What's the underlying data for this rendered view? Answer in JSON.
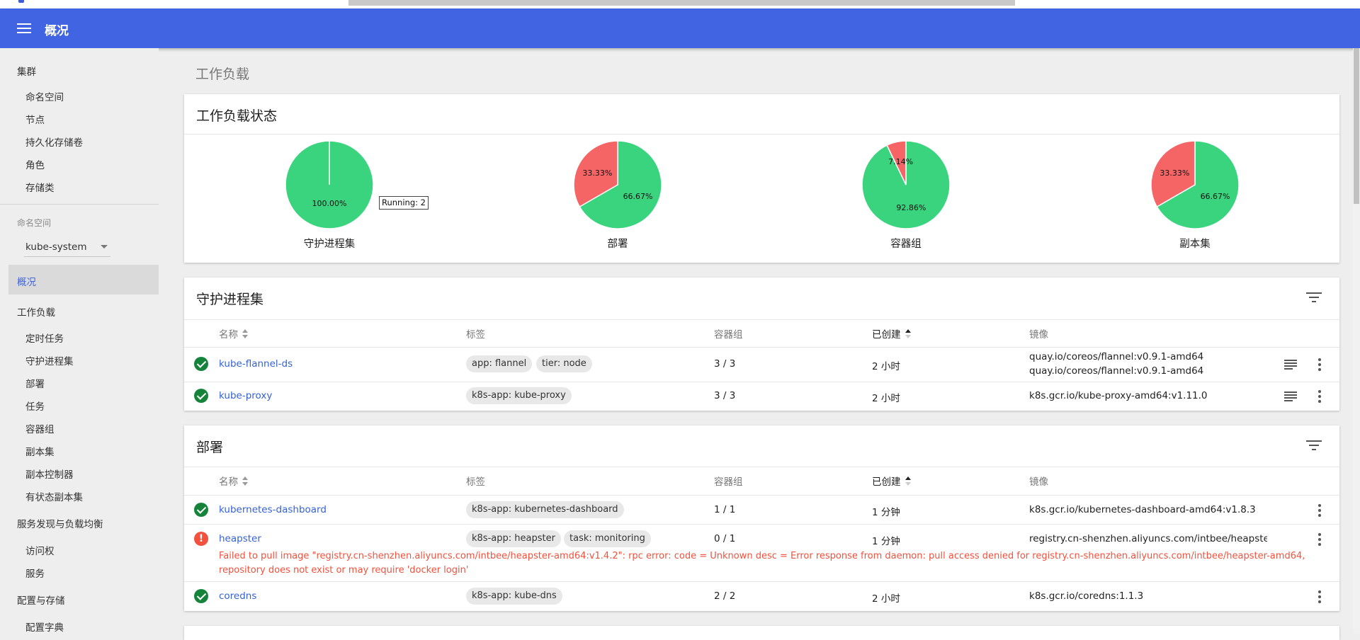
{
  "app": {
    "title": "概况"
  },
  "sidebar": {
    "cluster_section": "集群",
    "cluster_items": [
      "命名空间",
      "节点",
      "持久化存储卷",
      "角色",
      "存储类"
    ],
    "namespace_caption": "命名空间",
    "namespace_value": "kube-system",
    "overview": "概况",
    "workloads_section": "工作负载",
    "workload_items": [
      "定时任务",
      "守护进程集",
      "部署",
      "任务",
      "容器组",
      "副本集",
      "副本控制器",
      "有状态副本集"
    ],
    "discovery_section": "服务发现与负载均衡",
    "discovery_items": [
      "访问权",
      "服务"
    ],
    "config_section": "配置与存储",
    "config_items": [
      "配置字典"
    ]
  },
  "main": {
    "heading": "工作负载"
  },
  "status_card": {
    "title": "工作负载状态",
    "tooltip": "Running: 2",
    "colors": {
      "running": "#3ad47f",
      "failed": "#f56565",
      "pending": "#ffb300"
    },
    "pies": [
      {
        "label": "守护进程集",
        "running_fraction": 1.0,
        "failed_fraction": 0.0,
        "running_pct": "100.00%",
        "failed_pct": ""
      },
      {
        "label": "部署",
        "running_fraction": 0.6667,
        "failed_fraction": 0.3333,
        "running_pct": "66.67%",
        "failed_pct": "33.33%"
      },
      {
        "label": "容器组",
        "running_fraction": 0.9286,
        "failed_fraction": 0.0714,
        "running_pct": "92.86%",
        "failed_pct": "7.14%"
      },
      {
        "label": "副本集",
        "running_fraction": 0.6667,
        "failed_fraction": 0.3333,
        "running_pct": "66.67%",
        "failed_pct": "33.33%"
      }
    ]
  },
  "columns": {
    "name": "名称",
    "labels": "标签",
    "pods": "容器组",
    "created": "已创建",
    "images": "镜像"
  },
  "daemonsets": {
    "title": "守护进程集",
    "rows": [
      {
        "name": "kube-flannel-ds",
        "labels": [
          "app: flannel",
          "tier: node"
        ],
        "pods": "3 / 3",
        "created": "2 小时",
        "images": [
          "quay.io/coreos/flannel:v0.9.1-amd64",
          "quay.io/coreos/flannel:v0.9.1-amd64"
        ]
      },
      {
        "name": "kube-proxy",
        "labels": [
          "k8s-app: kube-proxy"
        ],
        "pods": "3 / 3",
        "created": "2 小时",
        "images": [
          "k8s.gcr.io/kube-proxy-amd64:v1.11.0"
        ]
      }
    ]
  },
  "deployments": {
    "title": "部署",
    "rows": [
      {
        "name": "kubernetes-dashboard",
        "labels": [
          "k8s-app: kubernetes-dashboard"
        ],
        "pods": "1 / 1",
        "created": "1 分钟",
        "images": [
          "k8s.gcr.io/kubernetes-dashboard-amd64:v1.8.3"
        ]
      },
      {
        "name": "heapster",
        "labels": [
          "k8s-app: heapster",
          "task: monitoring"
        ],
        "pods": "0 / 1",
        "created": "1 分钟",
        "images": [
          "registry.cn-shenzhen.aliyuncs.com/intbee/heapster-a"
        ],
        "error": "Failed to pull image \"registry.cn-shenzhen.aliyuncs.com/intbee/heapster-amd64:v1.4.2\": rpc error: code = Unknown desc = Error response from daemon: pull access denied for registry.cn-shenzhen.aliyuncs.com/intbee/heapster-amd64, repository does not exist or may require 'docker login'"
      },
      {
        "name": "coredns",
        "labels": [
          "k8s-app: kube-dns"
        ],
        "pods": "2 / 2",
        "created": "2 小时",
        "images": [
          "k8s.gcr.io/coredns:1.1.3"
        ]
      }
    ]
  }
}
